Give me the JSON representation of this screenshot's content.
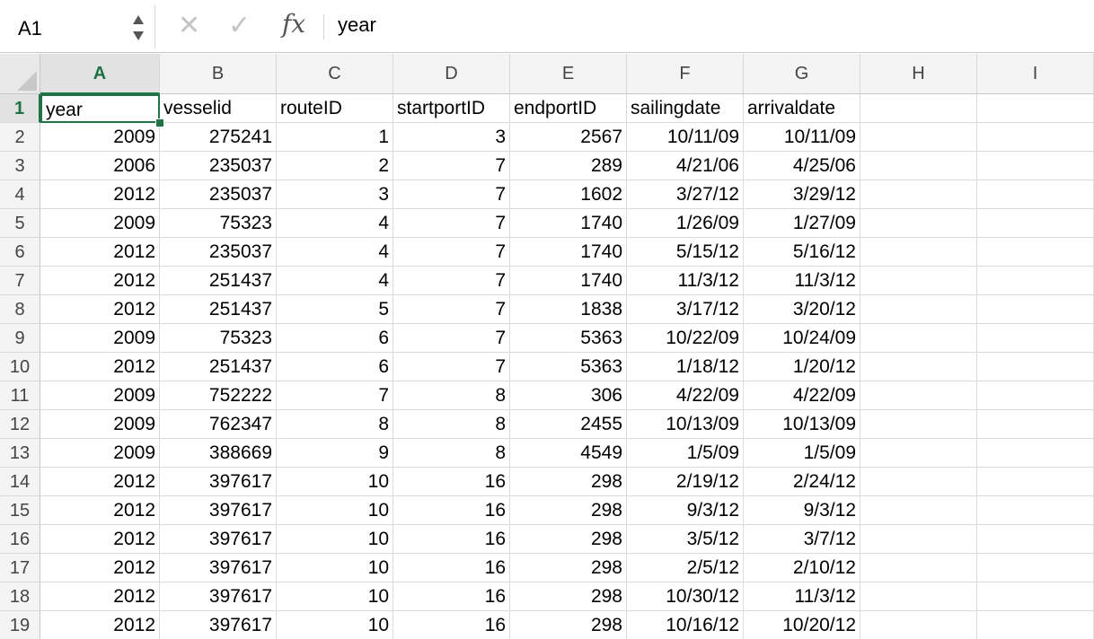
{
  "formula_bar": {
    "name_box": "A1",
    "content": "year",
    "fx_label": "fx"
  },
  "columns": [
    "A",
    "B",
    "C",
    "D",
    "E",
    "F",
    "G",
    "H",
    "I"
  ],
  "selected_cell": "A1",
  "rows": [
    [
      "year",
      "vesselid",
      "routeID",
      "startportID",
      "endportID",
      "sailingdate",
      "arrivaldate",
      "",
      ""
    ],
    [
      "2009",
      "275241",
      "1",
      "3",
      "2567",
      "10/11/09",
      "10/11/09",
      "",
      ""
    ],
    [
      "2006",
      "235037",
      "2",
      "7",
      "289",
      "4/21/06",
      "4/25/06",
      "",
      ""
    ],
    [
      "2012",
      "235037",
      "3",
      "7",
      "1602",
      "3/27/12",
      "3/29/12",
      "",
      ""
    ],
    [
      "2009",
      "75323",
      "4",
      "7",
      "1740",
      "1/26/09",
      "1/27/09",
      "",
      ""
    ],
    [
      "2012",
      "235037",
      "4",
      "7",
      "1740",
      "5/15/12",
      "5/16/12",
      "",
      ""
    ],
    [
      "2012",
      "251437",
      "4",
      "7",
      "1740",
      "11/3/12",
      "11/3/12",
      "",
      ""
    ],
    [
      "2012",
      "251437",
      "5",
      "7",
      "1838",
      "3/17/12",
      "3/20/12",
      "",
      ""
    ],
    [
      "2009",
      "75323",
      "6",
      "7",
      "5363",
      "10/22/09",
      "10/24/09",
      "",
      ""
    ],
    [
      "2012",
      "251437",
      "6",
      "7",
      "5363",
      "1/18/12",
      "1/20/12",
      "",
      ""
    ],
    [
      "2009",
      "752222",
      "7",
      "8",
      "306",
      "4/22/09",
      "4/22/09",
      "",
      ""
    ],
    [
      "2009",
      "762347",
      "8",
      "8",
      "2455",
      "10/13/09",
      "10/13/09",
      "",
      ""
    ],
    [
      "2009",
      "388669",
      "9",
      "8",
      "4549",
      "1/5/09",
      "1/5/09",
      "",
      ""
    ],
    [
      "2012",
      "397617",
      "10",
      "16",
      "298",
      "2/19/12",
      "2/24/12",
      "",
      ""
    ],
    [
      "2012",
      "397617",
      "10",
      "16",
      "298",
      "9/3/12",
      "9/3/12",
      "",
      ""
    ],
    [
      "2012",
      "397617",
      "10",
      "16",
      "298",
      "3/5/12",
      "3/7/12",
      "",
      ""
    ],
    [
      "2012",
      "397617",
      "10",
      "16",
      "298",
      "2/5/12",
      "2/10/12",
      "",
      ""
    ],
    [
      "2012",
      "397617",
      "10",
      "16",
      "298",
      "10/30/12",
      "11/3/12",
      "",
      ""
    ],
    [
      "2012",
      "397617",
      "10",
      "16",
      "298",
      "10/16/12",
      "10/20/12",
      "",
      ""
    ]
  ],
  "row_numbers": [
    "1",
    "2",
    "3",
    "4",
    "5",
    "6",
    "7",
    "8",
    "9",
    "10",
    "11",
    "12",
    "13",
    "14",
    "15",
    "16",
    "17",
    "18",
    "19"
  ],
  "colors": {
    "accent": "#217346"
  }
}
